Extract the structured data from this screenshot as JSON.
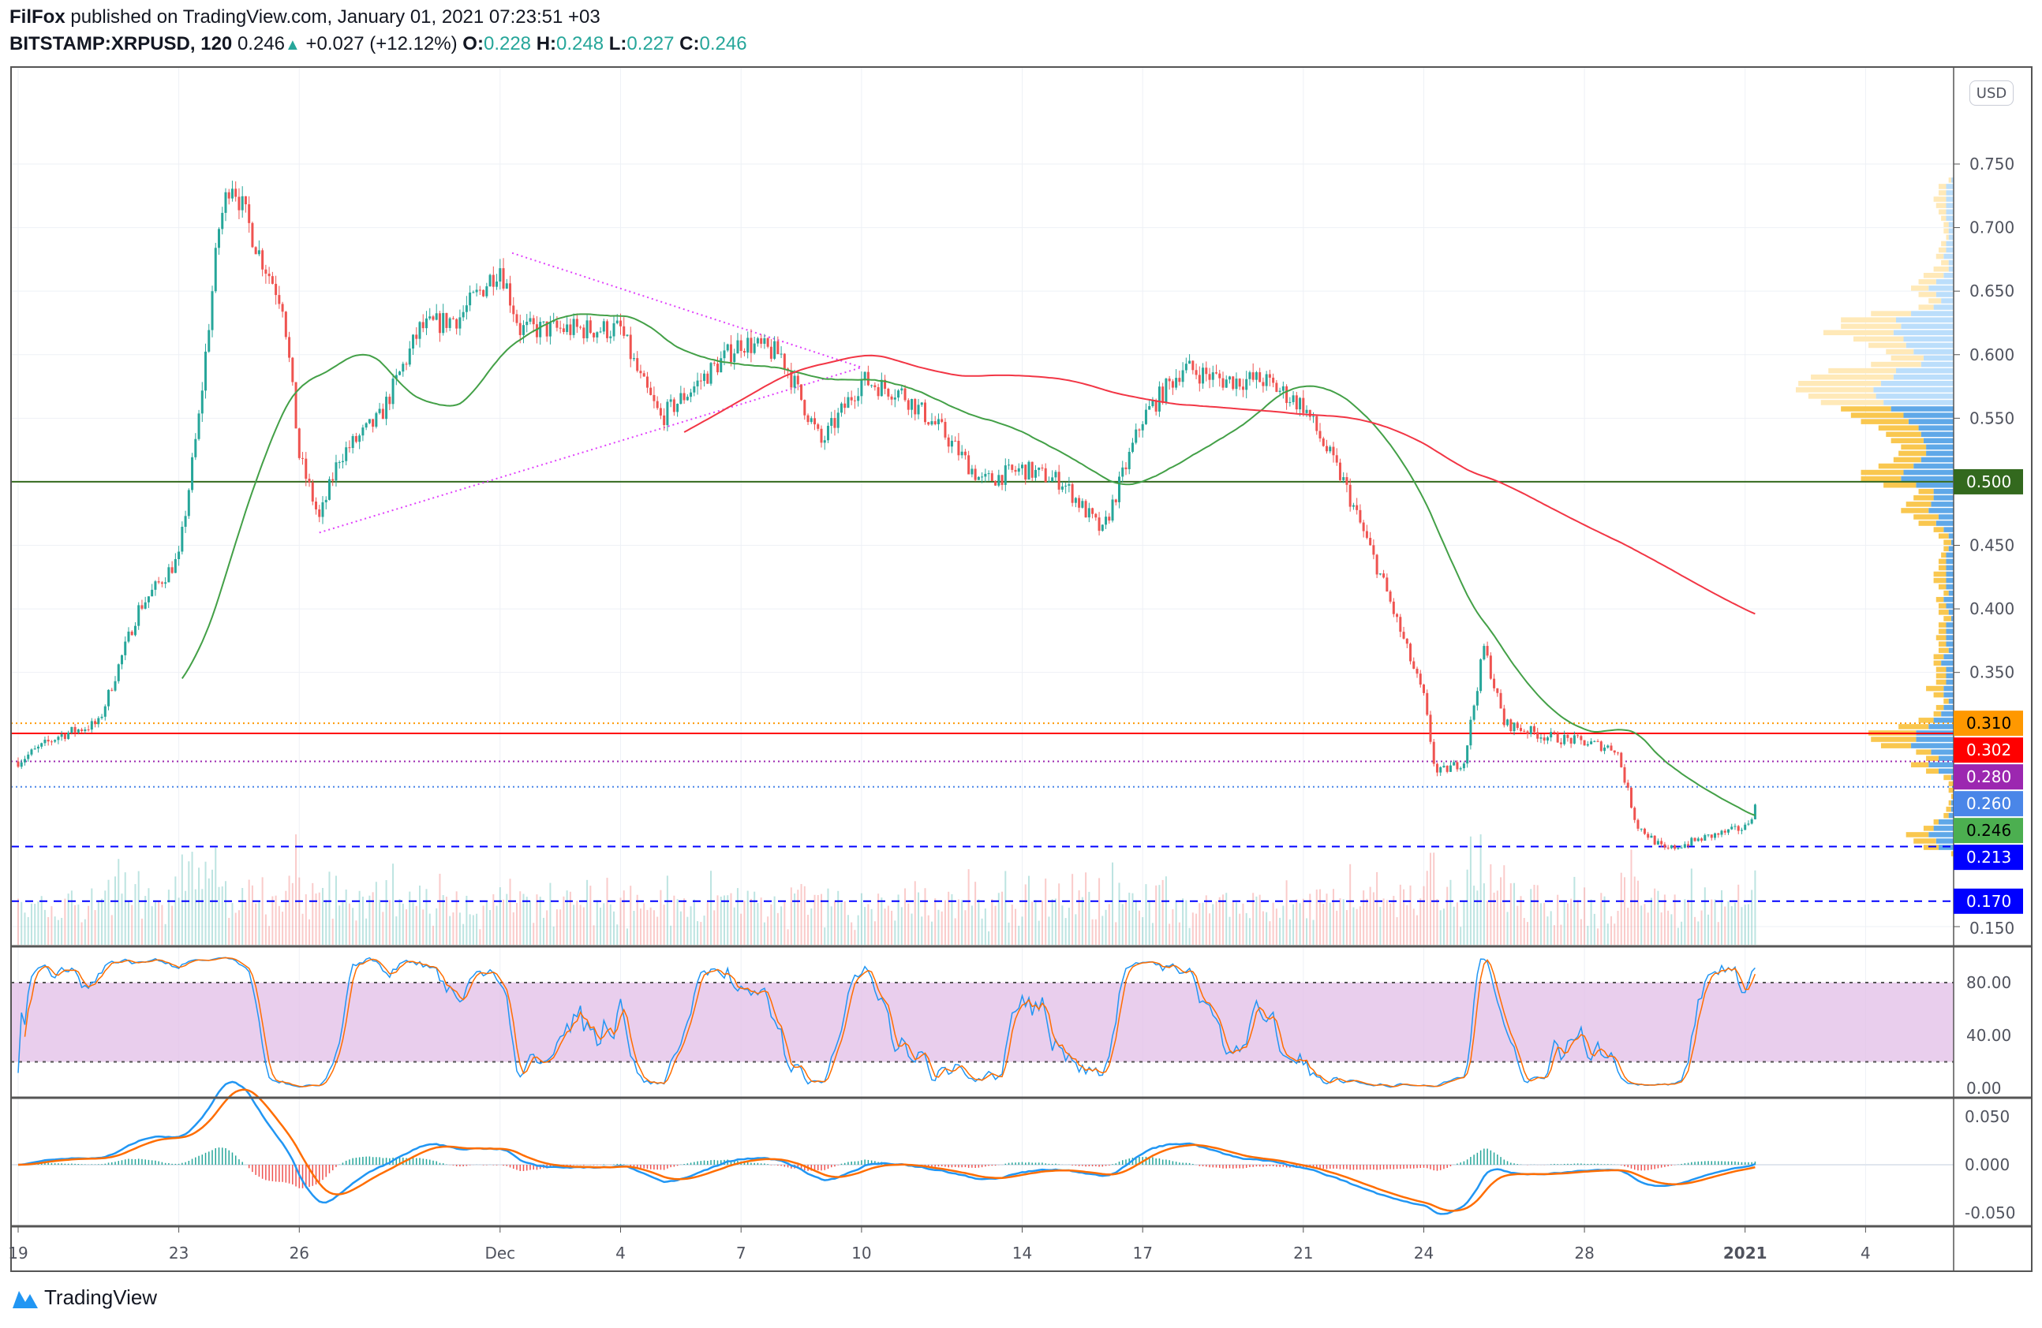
{
  "header": {
    "author": "FilFox",
    "published": "published on TradingView.com, January 01, 2021 07:23:51 +03",
    "symbol": "BITSTAMP:XRPUSD, 120",
    "last": "0.246",
    "change": "+0.027 (+12.12%)",
    "o_label": "O:",
    "o": "0.228",
    "h_label": "H:",
    "h": "0.248",
    "l_label": "L:",
    "l": "0.227",
    "c_label": "C:",
    "c": "0.246"
  },
  "currency_button": "USD",
  "footer": {
    "brand": "TradingView"
  },
  "colors": {
    "up": "#26a69a",
    "down": "#ef5350",
    "ma_fast": "#43a047",
    "ma_slow": "#f23645",
    "stoch_k": "#2196f3",
    "stoch_d": "#ff6d00",
    "stoch_band": "#e1bee7",
    "macd": "#2196f3",
    "signal": "#ff6d00",
    "triangle": "#e040fb"
  },
  "chart_data": {
    "type": "candlestick",
    "title": "BITSTAMP:XRPUSD, 120",
    "interval_minutes": 120,
    "x_ticks": [
      {
        "day": 0,
        "label": "19"
      },
      {
        "day": 4,
        "label": "23"
      },
      {
        "day": 7,
        "label": "26"
      },
      {
        "day": 12,
        "label": "Dec"
      },
      {
        "day": 15,
        "label": "4"
      },
      {
        "day": 18,
        "label": "7"
      },
      {
        "day": 21,
        "label": "10"
      },
      {
        "day": 25,
        "label": "14"
      },
      {
        "day": 28,
        "label": "17"
      },
      {
        "day": 32,
        "label": "21"
      },
      {
        "day": 35,
        "label": "24"
      },
      {
        "day": 39,
        "label": "28"
      },
      {
        "day": 43,
        "label": "2021"
      },
      {
        "day": 46,
        "label": "4"
      }
    ],
    "price_axis": {
      "ylim": [
        0.13,
        0.79
      ],
      "ticks": [
        "0.750",
        "0.700",
        "0.650",
        "0.600",
        "0.550",
        "0.450",
        "0.400",
        "0.350",
        "0.150"
      ],
      "currency": "USD"
    },
    "close_path": [
      [
        0,
        0.28
      ],
      [
        1,
        0.3
      ],
      [
        2,
        0.31
      ],
      [
        3,
        0.4
      ],
      [
        4,
        0.44
      ],
      [
        4.5,
        0.55
      ],
      [
        5,
        0.7
      ],
      [
        5.3,
        0.74
      ],
      [
        6,
        0.68
      ],
      [
        6.6,
        0.64
      ],
      [
        7,
        0.52
      ],
      [
        7.5,
        0.47
      ],
      [
        8,
        0.52
      ],
      [
        9,
        0.55
      ],
      [
        10,
        0.62
      ],
      [
        11,
        0.63
      ],
      [
        12,
        0.67
      ],
      [
        12.5,
        0.62
      ],
      [
        14,
        0.62
      ],
      [
        15,
        0.62
      ],
      [
        15.5,
        0.58
      ],
      [
        16,
        0.55
      ],
      [
        17,
        0.58
      ],
      [
        18,
        0.61
      ],
      [
        19,
        0.6
      ],
      [
        20,
        0.53
      ],
      [
        21,
        0.58
      ],
      [
        22,
        0.57
      ],
      [
        23,
        0.54
      ],
      [
        24,
        0.5
      ],
      [
        25,
        0.51
      ],
      [
        26,
        0.5
      ],
      [
        27,
        0.46
      ],
      [
        28,
        0.55
      ],
      [
        29,
        0.59
      ],
      [
        30,
        0.58
      ],
      [
        31,
        0.58
      ],
      [
        32,
        0.56
      ],
      [
        33,
        0.5
      ],
      [
        34,
        0.42
      ],
      [
        35,
        0.33
      ],
      [
        35.3,
        0.27
      ],
      [
        36,
        0.28
      ],
      [
        36.5,
        0.37
      ],
      [
        37,
        0.31
      ],
      [
        38,
        0.3
      ],
      [
        39,
        0.295
      ],
      [
        39.8,
        0.29
      ],
      [
        40.3,
        0.23
      ],
      [
        41,
        0.21
      ],
      [
        42,
        0.22
      ],
      [
        43,
        0.228
      ],
      [
        43.3,
        0.246
      ]
    ],
    "moving_averages": [
      {
        "name": "SMA 50",
        "period": 50
      },
      {
        "name": "SMA 200",
        "period": 200
      }
    ],
    "horizontal_levels": [
      {
        "price": 0.5,
        "label": "0.500",
        "color": "#33691e",
        "style": "solid"
      },
      {
        "price": 0.31,
        "label": "0.310",
        "color": "#ff9800",
        "style": "dotted"
      },
      {
        "price": 0.302,
        "label": "0.302",
        "color": "#ff0000",
        "style": "solid"
      },
      {
        "price": 0.28,
        "label": "0.280",
        "color": "#9c27b0",
        "style": "dotted"
      },
      {
        "price": 0.26,
        "label": "0.260",
        "color": "#4a86e8",
        "style": "dotted"
      },
      {
        "price": 0.246,
        "label": "0.246",
        "color": "#4caf50",
        "style": "last"
      },
      {
        "price": 0.213,
        "label": "0.213",
        "color": "#0000ff",
        "style": "dashed"
      },
      {
        "price": 0.17,
        "label": "0.170",
        "color": "#0000ff",
        "style": "dashed"
      }
    ],
    "triangle": [
      {
        "from": [
          7.5,
          0.46
        ],
        "to": [
          21,
          0.59
        ]
      },
      {
        "from": [
          12.3,
          0.68
        ],
        "to": [
          21,
          0.59
        ]
      }
    ],
    "stochastic": {
      "k": 14,
      "smooth_k": 3,
      "d": 3,
      "bands": [
        80,
        20
      ],
      "ticks": [
        "80.00",
        "40.00",
        "0.00"
      ]
    },
    "macd": {
      "fast": 12,
      "slow": 26,
      "signal": 9,
      "ticks": [
        "0.050",
        "0.000",
        "-0.050"
      ],
      "ylim": [
        -0.06,
        0.06
      ]
    }
  }
}
